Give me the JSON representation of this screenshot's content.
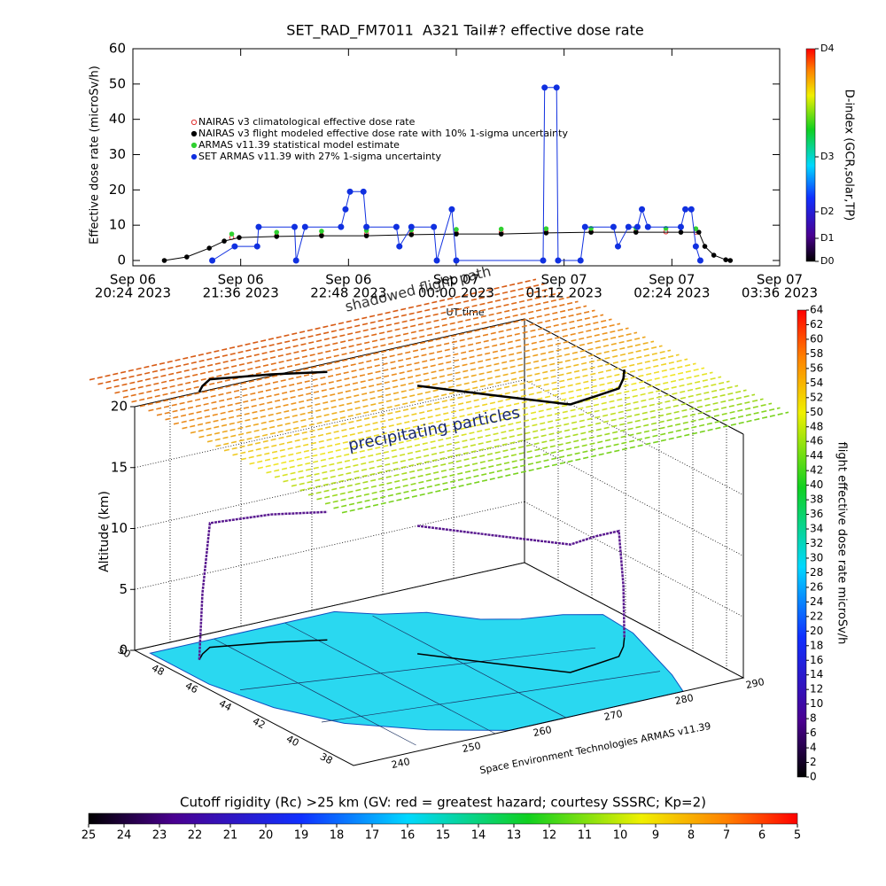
{
  "chart_data": [
    {
      "type": "line",
      "title": "SET_RAD_FM7011  A321 Tail#? effective dose rate",
      "ylabel": "Effective dose rate (microSv/h)",
      "xlabel": "UT time",
      "xlim": [
        "2023-09-06 20:24",
        "2023-09-07 03:36"
      ],
      "xticks": [
        {
          "value": "2023-09-06 20:24",
          "label": [
            "Sep 06",
            "20:24 2023"
          ]
        },
        {
          "value": "2023-09-06 21:36",
          "label": [
            "Sep 06",
            "21:36 2023"
          ]
        },
        {
          "value": "2023-09-06 22:48",
          "label": [
            "Sep 06",
            "22:48 2023"
          ]
        },
        {
          "value": "2023-09-07 00:00",
          "label": [
            "Sep 07",
            "00:00 2023"
          ]
        },
        {
          "value": "2023-09-07 01:12",
          "label": [
            "Sep 07",
            "01:12 2023"
          ]
        },
        {
          "value": "2023-09-07 02:24",
          "label": [
            "Sep 07",
            "02:24 2023"
          ]
        },
        {
          "value": "2023-09-07 03:36",
          "label": [
            "Sep 07",
            "03:36 2023"
          ]
        }
      ],
      "ylim": [
        0,
        60
      ],
      "yticks": [
        0,
        10,
        20,
        30,
        40,
        50,
        60
      ],
      "series": [
        {
          "name": "NAIRAS v3 climatological effective dose rate",
          "color": "#e03030",
          "connect": false,
          "x": [
            "2023-09-06 21:30",
            "2023-09-06 22:00",
            "2023-09-06 22:30",
            "2023-09-06 23:00",
            "2023-09-06 23:30",
            "2023-09-07 00:00",
            "2023-09-07 00:30",
            "2023-09-07 01:00",
            "2023-09-07 01:30",
            "2023-09-07 02:00",
            "2023-09-07 02:20",
            "2023-09-07 02:40"
          ],
          "values": [
            6.5,
            7,
            7.2,
            7.5,
            7.6,
            7.8,
            8,
            8.2,
            8.2,
            8.2,
            8.1,
            8
          ]
        },
        {
          "name": "NAIRAS v3 flight modeled effective dose rate with 10% 1-sigma uncertainty",
          "color": "#000000",
          "connect": true,
          "x": [
            "2023-09-06 20:45",
            "2023-09-06 21:00",
            "2023-09-06 21:15",
            "2023-09-06 21:25",
            "2023-09-06 21:35",
            "2023-09-06 22:00",
            "2023-09-06 22:30",
            "2023-09-06 23:00",
            "2023-09-06 23:30",
            "2023-09-07 00:00",
            "2023-09-07 00:30",
            "2023-09-07 01:00",
            "2023-09-07 01:30",
            "2023-09-07 02:00",
            "2023-09-07 02:30",
            "2023-09-07 02:42",
            "2023-09-07 02:46",
            "2023-09-07 02:52",
            "2023-09-07 03:00",
            "2023-09-07 03:03"
          ],
          "values": [
            0,
            1,
            3.5,
            5.5,
            6.5,
            6.8,
            7,
            7,
            7.3,
            7.5,
            7.5,
            7.8,
            8,
            8,
            8,
            8,
            4,
            1.5,
            0.2,
            0
          ]
        },
        {
          "name": "ARMAS v11.39 statistical model estimate",
          "color": "#30d030",
          "connect": false,
          "x": [
            "2023-09-06 21:30",
            "2023-09-06 22:00",
            "2023-09-06 22:30",
            "2023-09-06 23:00",
            "2023-09-06 23:30",
            "2023-09-07 00:00",
            "2023-09-07 00:30",
            "2023-09-07 01:00",
            "2023-09-07 01:30",
            "2023-09-07 02:00",
            "2023-09-07 02:20",
            "2023-09-07 02:40",
            "2023-09-07 02:43"
          ],
          "values": [
            7.5,
            8,
            8.3,
            8.5,
            8.7,
            8.8,
            8.9,
            9,
            9.1,
            9.2,
            9.1,
            9,
            0
          ]
        },
        {
          "name": "SET ARMAS v11.39 with 27% 1-sigma uncertainty",
          "color": "#1030e0",
          "connect": true,
          "x": [
            "2023-09-06 21:17",
            "2023-09-06 21:32",
            "2023-09-06 21:47",
            "2023-09-06 21:48",
            "2023-09-06 22:12",
            "2023-09-06 22:13",
            "2023-09-06 22:19",
            "2023-09-06 22:43",
            "2023-09-06 22:46",
            "2023-09-06 22:49",
            "2023-09-06 22:58",
            "2023-09-06 23:00",
            "2023-09-06 23:20",
            "2023-09-06 23:22",
            "2023-09-06 23:30",
            "2023-09-06 23:45",
            "2023-09-06 23:47",
            "2023-09-06 23:57",
            "2023-09-07 00:00",
            "2023-09-07 00:58",
            "2023-09-07 00:59",
            "2023-09-07 01:07",
            "2023-09-07 01:08",
            "2023-09-07 01:23",
            "2023-09-07 01:26",
            "2023-09-07 01:45",
            "2023-09-07 01:48",
            "2023-09-07 01:55",
            "2023-09-07 02:01",
            "2023-09-07 02:04",
            "2023-09-07 02:08",
            "2023-09-07 02:30",
            "2023-09-07 02:33",
            "2023-09-07 02:37",
            "2023-09-07 02:40",
            "2023-09-07 02:43"
          ],
          "values": [
            0,
            4,
            4,
            9.5,
            9.5,
            0,
            9.5,
            9.5,
            14.5,
            19.5,
            19.5,
            9.5,
            9.5,
            4,
            9.5,
            9.5,
            0,
            14.5,
            0,
            0,
            49,
            49,
            0,
            0,
            9.5,
            9.5,
            4,
            9.5,
            9.5,
            14.5,
            9.5,
            9.5,
            14.5,
            14.5,
            4,
            0
          ]
        }
      ],
      "colorbar": {
        "label": "D-index (GCR,solar,TP)",
        "lim": [
          0,
          60
        ],
        "ticks": [
          {
            "value": 0,
            "label": "D0"
          },
          {
            "value": 6.5,
            "label": "D1"
          },
          {
            "value": 14,
            "label": "D2"
          },
          {
            "value": 29.5,
            "label": "D3"
          },
          {
            "value": 60,
            "label": "D4"
          }
        ]
      }
    },
    {
      "type": "surface3d",
      "zlabel": "Altitude (km)",
      "zlim": [
        0,
        20
      ],
      "zticks": [
        0,
        5,
        10,
        15,
        20
      ],
      "xlim": [
        235,
        290
      ],
      "xticks": [
        240,
        250,
        260,
        270,
        280,
        290
      ],
      "ylim": [
        37,
        50
      ],
      "yticks": [
        38,
        40,
        42,
        44,
        46,
        48,
        50
      ],
      "annotations": [
        "precipitating particles",
        "shadowed flight path"
      ],
      "credit": "Space Environment Technologies ARMAS v11.39",
      "flight": {
        "lon": [
          239.6,
          241,
          243,
          250,
          256,
          null,
          262.3,
          268,
          273.9,
          278,
          281.7,
          284,
          285.8
        ],
        "lat": [
          48.1,
          48.5,
          48.9,
          48.2,
          47.4,
          null,
          44.7,
          42.6,
          40.5,
          40.7,
          40.9,
          41.6,
          42.3
        ],
        "alt": [
          0,
          5,
          10.2,
          10.5,
          10.5,
          null,
          10.5,
          10.5,
          10.5,
          10.5,
          10.3,
          5,
          0
        ]
      },
      "colorbar": {
        "label": "flight effective dose rate microSv/h",
        "lim": [
          0,
          64
        ],
        "ticks": [
          0,
          2,
          4,
          6,
          8,
          10,
          12,
          14,
          16,
          18,
          20,
          22,
          24,
          26,
          28,
          30,
          32,
          34,
          36,
          38,
          40,
          42,
          44,
          46,
          48,
          50,
          52,
          54,
          56,
          58,
          60,
          62,
          64
        ]
      },
      "colorbar2": {
        "title": "Cutoff rigidity (Rc) >25 km (GV: red = greatest hazard; courtesy SSSRC; Kp=2)",
        "lim": [
          25,
          5
        ],
        "ticks": [
          25,
          24,
          23,
          22,
          21,
          20,
          19,
          18,
          17,
          16,
          15,
          14,
          13,
          12,
          11,
          10,
          9,
          8,
          7,
          6,
          5
        ]
      }
    }
  ]
}
